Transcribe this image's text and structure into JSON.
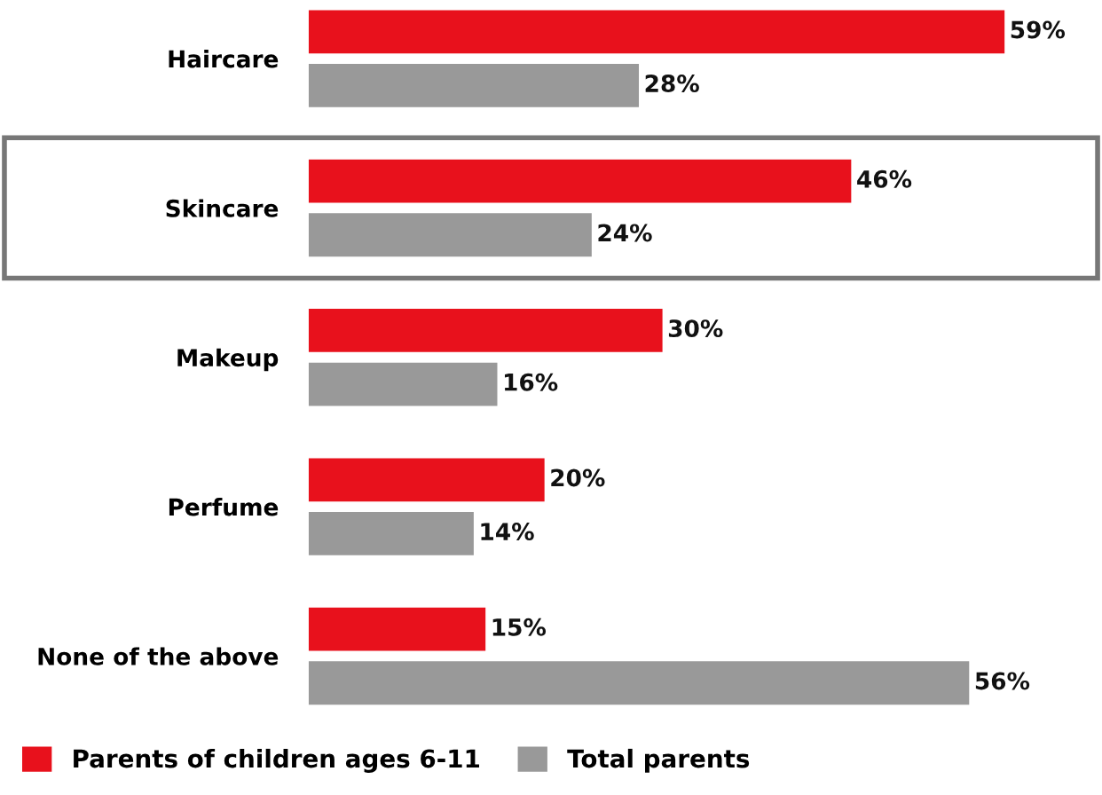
{
  "chart_data": {
    "type": "bar",
    "orientation": "horizontal",
    "categories": [
      "Haircare",
      "Skincare",
      "Makeup",
      "Perfume",
      "None of the above"
    ],
    "series": [
      {
        "name": "Parents of children ages 6-11",
        "color": "#e8111c",
        "values": [
          59,
          46,
          30,
          20,
          15
        ],
        "value_labels": [
          "59%",
          "46%",
          "30%",
          "20%",
          "15%"
        ]
      },
      {
        "name": "Total parents",
        "color": "#999999",
        "values": [
          28,
          24,
          16,
          14,
          56
        ],
        "value_labels": [
          "28%",
          "24%",
          "16%",
          "14%",
          "56%"
        ]
      }
    ],
    "legend": "bottom"
  }
}
